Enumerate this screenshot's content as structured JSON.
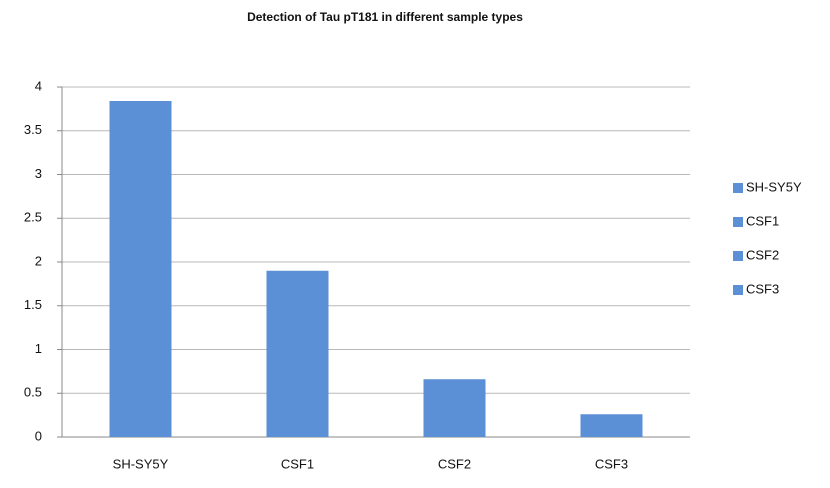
{
  "chart_data": {
    "type": "bar",
    "title": "Detection of Tau pT181 in different sample types",
    "categories": [
      "SH-SY5Y",
      "CSF1",
      "CSF2",
      "CSF3"
    ],
    "values": [
      3.84,
      1.9,
      0.66,
      0.26
    ],
    "color": "#5b8fd6",
    "ylim": [
      0,
      4
    ],
    "yticks": [
      0,
      0.5,
      1,
      1.5,
      2,
      2.5,
      3,
      3.5,
      4
    ],
    "grid": true,
    "legend": "right"
  }
}
